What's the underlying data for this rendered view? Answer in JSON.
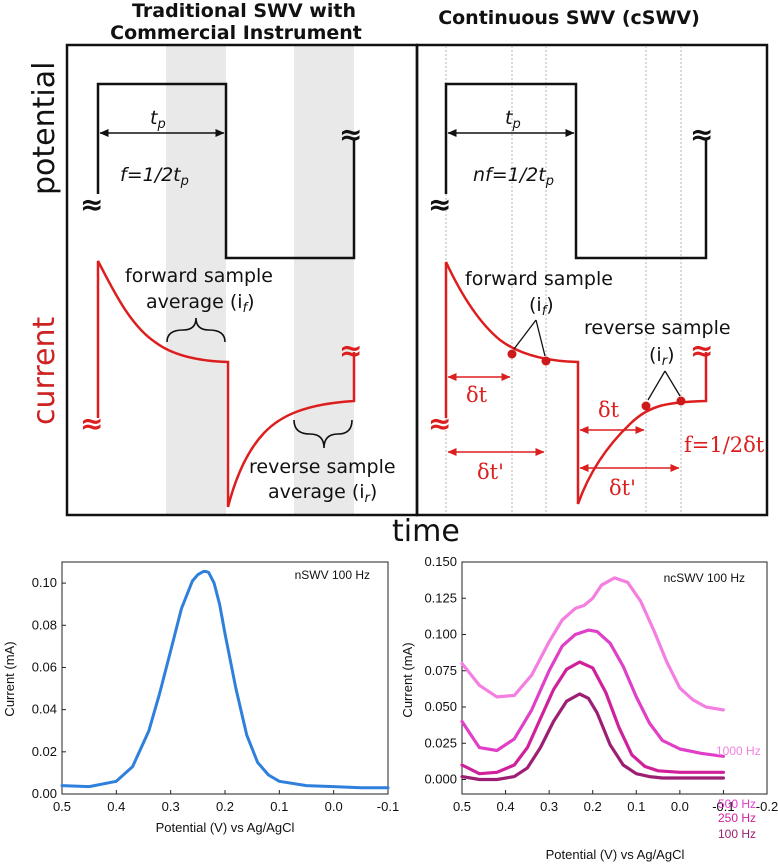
{
  "left_panel": {
    "title_line1": "Traditional SWV with",
    "title_line2": "Commercial Instrument",
    "tp": "t",
    "tp_sub": "p",
    "freq_pre": "f=1/2t",
    "freq_sub": "p",
    "fwd_line1": "forward sample",
    "fwd_line2": "average (i",
    "fwd_sub": "f",
    "rev_line1": "reverse sample",
    "rev_line2": "average (i",
    "rev_sub": "r"
  },
  "right_panel": {
    "title": "Continuous SWV (cSWV)",
    "tp": "t",
    "tp_sub": "p",
    "freq_pre": "nf=1/2t",
    "freq_sub": "p",
    "fwd_line1": "forward sample",
    "fwd_i": "(i",
    "fwd_sub": "f",
    "rev_line1": "reverse sample",
    "rev_i": "(i",
    "rev_sub": "r",
    "dt1": "δt",
    "dt2": "δt'",
    "dt3": "δt",
    "dt4": "δt'",
    "freq2": "f=1/2δt"
  },
  "axis_labels": {
    "potential": "potential",
    "current": "current",
    "time": "time",
    "break_symbol": "≈",
    "close_paren": ")"
  },
  "colors": {
    "red": "#dd1e1e",
    "blue": "#2f7fdc",
    "shade": "#e9e9e9",
    "s1000": "#f47fe0",
    "s500": "#e040c8",
    "s250": "#d0219b",
    "s100": "#9c1f73"
  },
  "chart_data": [
    {
      "type": "line",
      "title": "",
      "annotation": "nSWV 100 Hz",
      "xlabel": "Potential (V) vs Ag/AgCl",
      "ylabel": "Current (mA)",
      "xlim": [
        0.5,
        -0.1
      ],
      "ylim": [
        0.0,
        0.11
      ],
      "xticks": [
        "0.5",
        "0.4",
        "0.3",
        "0.2",
        "0.1",
        "0.0",
        "-0.1"
      ],
      "yticks": [
        "0.00",
        "0.02",
        "0.04",
        "0.06",
        "0.08",
        "0.10"
      ],
      "series": [
        {
          "name": "nSWV 100 Hz",
          "x": [
            0.5,
            0.45,
            0.4,
            0.37,
            0.34,
            0.32,
            0.3,
            0.28,
            0.26,
            0.25,
            0.24,
            0.235,
            0.23,
            0.22,
            0.21,
            0.2,
            0.18,
            0.16,
            0.14,
            0.12,
            0.1,
            0.05,
            0.0,
            -0.05,
            -0.1
          ],
          "y": [
            0.004,
            0.0035,
            0.006,
            0.013,
            0.03,
            0.048,
            0.068,
            0.088,
            0.101,
            0.104,
            0.1055,
            0.1055,
            0.105,
            0.1,
            0.09,
            0.076,
            0.05,
            0.028,
            0.015,
            0.009,
            0.006,
            0.004,
            0.0035,
            0.003,
            0.003
          ]
        }
      ]
    },
    {
      "type": "line",
      "title": "",
      "annotation": "ncSWV 100 Hz",
      "xlabel": "Potential (V) vs Ag/AgCl",
      "ylabel": "Current (mA)",
      "xlim": [
        0.5,
        -0.2
      ],
      "ylim": [
        -0.01,
        0.15
      ],
      "xticks": [
        "0.5",
        "0.4",
        "0.3",
        "0.2",
        "0.1",
        "0.0",
        "-0.1",
        "-0.2"
      ],
      "yticks": [
        "0.000",
        "0.025",
        "0.050",
        "0.075",
        "0.100",
        "0.125",
        "0.150"
      ],
      "series": [
        {
          "name": "1000 Hz",
          "x": [
            0.5,
            0.46,
            0.42,
            0.38,
            0.34,
            0.3,
            0.27,
            0.24,
            0.22,
            0.2,
            0.18,
            0.15,
            0.12,
            0.09,
            0.06,
            0.03,
            0.0,
            -0.03,
            -0.06,
            -0.1
          ],
          "y": [
            0.08,
            0.065,
            0.057,
            0.058,
            0.072,
            0.095,
            0.11,
            0.118,
            0.12,
            0.125,
            0.134,
            0.139,
            0.136,
            0.123,
            0.103,
            0.081,
            0.063,
            0.055,
            0.05,
            0.048
          ]
        },
        {
          "name": "500 Hz",
          "x": [
            0.5,
            0.46,
            0.42,
            0.38,
            0.34,
            0.3,
            0.27,
            0.24,
            0.21,
            0.19,
            0.16,
            0.13,
            0.1,
            0.07,
            0.04,
            0.0,
            -0.05,
            -0.1
          ],
          "y": [
            0.04,
            0.022,
            0.02,
            0.028,
            0.048,
            0.075,
            0.092,
            0.1,
            0.103,
            0.102,
            0.094,
            0.078,
            0.057,
            0.039,
            0.027,
            0.021,
            0.018,
            0.016
          ]
        },
        {
          "name": "250 Hz",
          "x": [
            0.5,
            0.46,
            0.42,
            0.38,
            0.35,
            0.32,
            0.29,
            0.26,
            0.23,
            0.2,
            0.17,
            0.14,
            0.11,
            0.08,
            0.05,
            0.0,
            -0.05,
            -0.1
          ],
          "y": [
            0.01,
            0.004,
            0.005,
            0.01,
            0.022,
            0.042,
            0.062,
            0.076,
            0.081,
            0.077,
            0.06,
            0.036,
            0.017,
            0.009,
            0.006,
            0.005,
            0.005,
            0.005
          ]
        },
        {
          "name": "100 Hz",
          "x": [
            0.5,
            0.46,
            0.42,
            0.38,
            0.35,
            0.32,
            0.29,
            0.26,
            0.23,
            0.21,
            0.19,
            0.16,
            0.13,
            0.1,
            0.07,
            0.04,
            0.0,
            -0.05,
            -0.1
          ],
          "y": [
            0.002,
            0.0,
            0.0,
            0.002,
            0.008,
            0.022,
            0.04,
            0.054,
            0.059,
            0.056,
            0.046,
            0.024,
            0.01,
            0.004,
            0.002,
            0.001,
            0.001,
            0.001,
            0.001
          ]
        }
      ]
    }
  ]
}
